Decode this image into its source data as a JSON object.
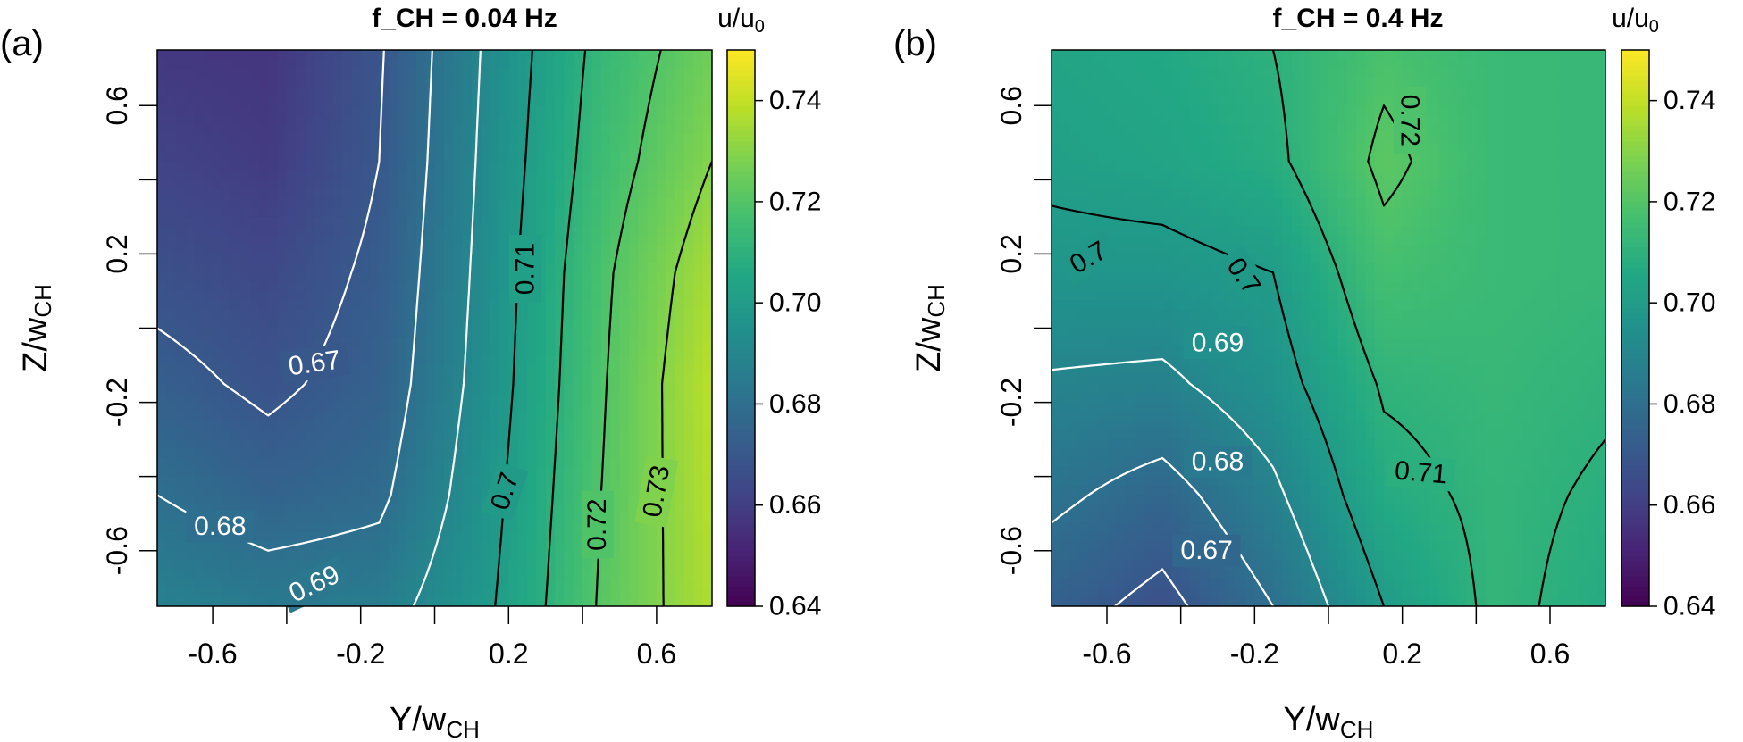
{
  "figure": {
    "background": "#ffffff"
  },
  "chart_data": [
    {
      "type": "heatmap",
      "panel_label": "(a)",
      "title": "f_CH = 0.04 Hz",
      "xlabel_main": "Y/w",
      "xlabel_sub": "CH",
      "ylabel_main": "Z/w",
      "ylabel_sub": "CH",
      "xlim": [
        -0.75,
        0.75
      ],
      "ylim": [
        -0.75,
        0.75
      ],
      "xticks": [
        -0.6,
        -0.4,
        -0.2,
        0,
        0.2,
        0.4,
        0.6
      ],
      "xtick_labels": [
        "-0.6",
        "",
        "-0.2",
        "",
        "0.2",
        "",
        "0.6"
      ],
      "yticks": [
        -0.6,
        -0.4,
        -0.2,
        0,
        0.2,
        0.4,
        0.6
      ],
      "ytick_labels": [
        "-0.6",
        "",
        "-0.2",
        "",
        "0.2",
        "",
        "0.6"
      ],
      "colorbar": {
        "title_main": "u/u",
        "title_sub": "0",
        "range": [
          0.64,
          0.75
        ],
        "ticks": [
          0.64,
          0.66,
          0.68,
          0.7,
          0.72,
          0.74
        ],
        "tick_labels": [
          "0.64",
          "0.66",
          "0.68",
          "0.70",
          "0.72",
          "0.74"
        ]
      },
      "grid": {
        "y": [
          -0.75,
          -0.45,
          -0.15,
          0.15,
          0.45,
          0.75
        ],
        "x": [
          -0.75,
          -0.45,
          -0.15,
          0.15,
          0.45,
          0.75
        ],
        "z": [
          [
            0.688,
            0.685,
            0.686,
            0.699,
            0.721,
            0.737
          ],
          [
            0.68,
            0.675,
            0.678,
            0.697,
            0.72,
            0.738
          ],
          [
            0.673,
            0.668,
            0.674,
            0.695,
            0.719,
            0.739
          ],
          [
            0.667,
            0.664,
            0.672,
            0.694,
            0.718,
            0.736
          ],
          [
            0.662,
            0.659,
            0.67,
            0.693,
            0.715,
            0.73
          ],
          [
            0.658,
            0.657,
            0.669,
            0.692,
            0.713,
            0.726
          ]
        ]
      },
      "contour_levels": [
        0.67,
        0.68,
        0.69,
        0.7,
        0.71,
        0.72,
        0.73
      ],
      "contour_light_below": 0.695,
      "contour_labels": [
        {
          "text": "0.67",
          "x": -0.325,
          "y": -0.095,
          "angle": -8,
          "color": "#ffffff"
        },
        {
          "text": "0.68",
          "x": -0.58,
          "y": -0.535,
          "angle": 0,
          "color": "#ffffff"
        },
        {
          "text": "0.69",
          "x": -0.325,
          "y": -0.69,
          "angle": -25,
          "color": "#ffffff"
        },
        {
          "text": "0.7",
          "x": 0.19,
          "y": -0.44,
          "angle": -72,
          "color": "#000000"
        },
        {
          "text": "0.71",
          "x": 0.245,
          "y": 0.16,
          "angle": -90,
          "color": "#000000"
        },
        {
          "text": "0.72",
          "x": 0.44,
          "y": -0.53,
          "angle": -90,
          "color": "#000000"
        },
        {
          "text": "0.73",
          "x": 0.6,
          "y": -0.44,
          "angle": -80,
          "color": "#000000"
        }
      ]
    },
    {
      "type": "heatmap",
      "panel_label": "(b)",
      "title": "f_CH = 0.4 Hz",
      "xlabel_main": "Y/w",
      "xlabel_sub": "CH",
      "ylabel_main": "Z/w",
      "ylabel_sub": "CH",
      "xlim": [
        -0.75,
        0.75
      ],
      "ylim": [
        -0.75,
        0.75
      ],
      "xticks": [
        -0.6,
        -0.4,
        -0.2,
        0,
        0.2,
        0.4,
        0.6
      ],
      "xtick_labels": [
        "-0.6",
        "",
        "-0.2",
        "",
        "0.2",
        "",
        "0.6"
      ],
      "yticks": [
        -0.6,
        -0.4,
        -0.2,
        0,
        0.2,
        0.4,
        0.6
      ],
      "ytick_labels": [
        "-0.6",
        "",
        "-0.2",
        "",
        "0.2",
        "",
        "0.6"
      ],
      "colorbar": {
        "title_main": "u/u",
        "title_sub": "0",
        "range": [
          0.64,
          0.75
        ],
        "ticks": [
          0.64,
          0.66,
          0.68,
          0.7,
          0.72,
          0.74
        ],
        "tick_labels": [
          "0.64",
          "0.66",
          "0.68",
          "0.70",
          "0.72",
          "0.74"
        ]
      },
      "grid": {
        "y": [
          -0.75,
          -0.45,
          -0.15,
          0.15,
          0.45,
          0.75
        ],
        "x": [
          -0.75,
          -0.45,
          -0.15,
          0.15,
          0.45,
          0.75
        ],
        "z": [
          [
            0.674,
            0.667,
            0.68,
            0.7,
            0.712,
            0.707
          ],
          [
            0.682,
            0.676,
            0.688,
            0.707,
            0.712,
            0.709
          ],
          [
            0.689,
            0.688,
            0.696,
            0.711,
            0.713,
            0.711
          ],
          [
            0.697,
            0.697,
            0.7,
            0.717,
            0.714,
            0.713
          ],
          [
            0.702,
            0.704,
            0.708,
            0.722,
            0.714,
            0.713
          ],
          [
            0.704,
            0.706,
            0.71,
            0.718,
            0.714,
            0.713
          ]
        ]
      },
      "contour_levels": [
        0.67,
        0.68,
        0.69,
        0.7,
        0.71,
        0.72
      ],
      "contour_light_below": 0.695,
      "contour_labels": [
        {
          "text": "0.67",
          "x": -0.33,
          "y": -0.6,
          "angle": 0,
          "color": "#ffffff"
        },
        {
          "text": "0.68",
          "x": -0.3,
          "y": -0.36,
          "angle": 0,
          "color": "#ffffff"
        },
        {
          "text": "0.69",
          "x": -0.3,
          "y": -0.04,
          "angle": 0,
          "color": "#ffffff"
        },
        {
          "text": "0.7",
          "x": -0.65,
          "y": 0.19,
          "angle": -30,
          "color": "#000000"
        },
        {
          "text": "0.7",
          "x": -0.23,
          "y": 0.14,
          "angle": 55,
          "color": "#000000"
        },
        {
          "text": "0.71",
          "x": 0.25,
          "y": -0.39,
          "angle": 5,
          "color": "#000000"
        },
        {
          "text": "0.72",
          "x": 0.22,
          "y": 0.56,
          "angle": 90,
          "color": "#000000"
        }
      ]
    }
  ]
}
